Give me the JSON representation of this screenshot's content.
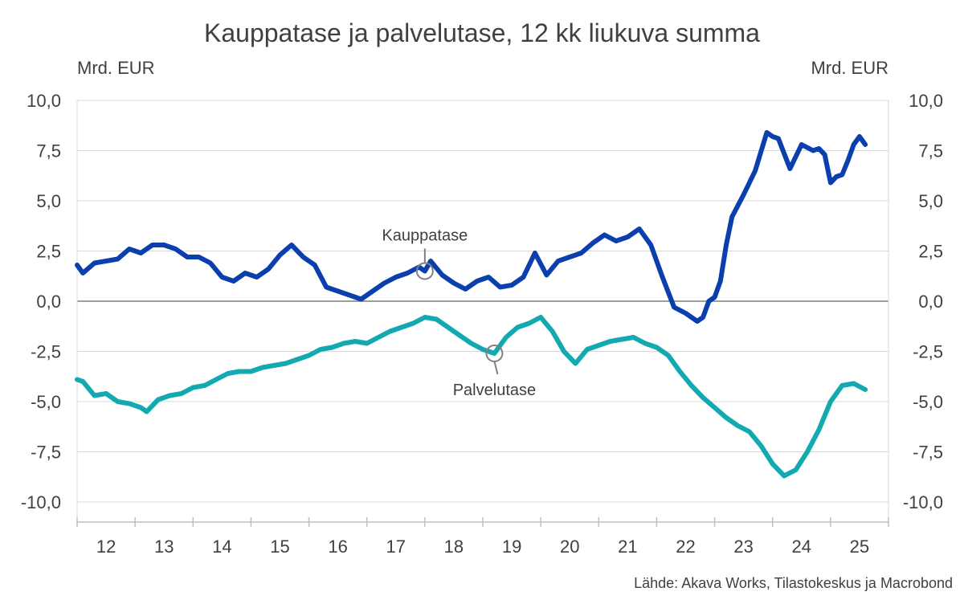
{
  "chart_data": {
    "type": "line",
    "title": "Kauppatase ja palvelutase, 12 kk liukuva summa",
    "ylabel_left": "Mrd. EUR",
    "ylabel_right": "Mrd. EUR",
    "ylim": [
      -10,
      10
    ],
    "yticks": [
      "10,0",
      "7,5",
      "5,0",
      "2,5",
      "0,0",
      "-2,5",
      "-5,0",
      "-7,5",
      "-10,0"
    ],
    "ytick_values": [
      10,
      7.5,
      5,
      2.5,
      0,
      -2.5,
      -5,
      -7.5,
      -10
    ],
    "xlim": [
      2012,
      2026
    ],
    "xticks": [
      "12",
      "13",
      "14",
      "15",
      "16",
      "17",
      "18",
      "19",
      "20",
      "21",
      "22",
      "23",
      "24",
      "25"
    ],
    "source": "Lähde: Akava Works, Tilastokeskus ja Macrobond",
    "colors": {
      "kauppatase": "#0a3fad",
      "palvelutase": "#12a9b0",
      "grid": "#d9d9d9",
      "axis": "#7f7f7f"
    },
    "series": [
      {
        "name": "Kauppatase",
        "annotation_x": 2018.0,
        "x": [
          2012.0,
          2012.1,
          2012.3,
          2012.5,
          2012.7,
          2012.9,
          2013.1,
          2013.3,
          2013.5,
          2013.7,
          2013.9,
          2014.1,
          2014.3,
          2014.5,
          2014.7,
          2014.9,
          2015.1,
          2015.3,
          2015.5,
          2015.7,
          2015.9,
          2016.1,
          2016.3,
          2016.5,
          2016.7,
          2016.9,
          2017.1,
          2017.3,
          2017.5,
          2017.7,
          2017.9,
          2018.0,
          2018.1,
          2018.3,
          2018.5,
          2018.7,
          2018.9,
          2019.1,
          2019.3,
          2019.5,
          2019.7,
          2019.9,
          2020.1,
          2020.3,
          2020.5,
          2020.7,
          2020.9,
          2021.1,
          2021.3,
          2021.5,
          2021.7,
          2021.9,
          2022.1,
          2022.3,
          2022.5,
          2022.7,
          2022.8,
          2022.9,
          2023.0,
          2023.1,
          2023.2,
          2023.3,
          2023.5,
          2023.7,
          2023.9,
          2024.0,
          2024.1,
          2024.3,
          2024.5,
          2024.7,
          2024.8,
          2024.9,
          2025.0,
          2025.1,
          2025.2,
          2025.3,
          2025.4,
          2025.5,
          2025.6
        ],
        "values": [
          1.8,
          1.4,
          1.9,
          2.0,
          2.1,
          2.6,
          2.4,
          2.8,
          2.8,
          2.6,
          2.2,
          2.2,
          1.9,
          1.2,
          1.0,
          1.4,
          1.2,
          1.6,
          2.3,
          2.8,
          2.2,
          1.8,
          0.7,
          0.5,
          0.3,
          0.1,
          0.5,
          0.9,
          1.2,
          1.4,
          1.7,
          1.5,
          2.0,
          1.3,
          0.9,
          0.6,
          1.0,
          1.2,
          0.7,
          0.8,
          1.2,
          2.4,
          1.3,
          2.0,
          2.2,
          2.4,
          2.9,
          3.3,
          3.0,
          3.2,
          3.6,
          2.8,
          1.2,
          -0.3,
          -0.6,
          -1.0,
          -0.8,
          0.0,
          0.2,
          1.0,
          2.8,
          4.2,
          5.3,
          6.5,
          8.4,
          8.2,
          8.1,
          6.6,
          7.8,
          7.5,
          7.6,
          7.3,
          5.9,
          6.2,
          6.3,
          7.0,
          7.8,
          8.2,
          7.8
        ]
      },
      {
        "name": "Palvelutase",
        "annotation_x": 2019.2,
        "x": [
          2012.0,
          2012.1,
          2012.3,
          2012.5,
          2012.7,
          2012.9,
          2013.1,
          2013.2,
          2013.4,
          2013.6,
          2013.8,
          2014.0,
          2014.2,
          2014.4,
          2014.6,
          2014.8,
          2015.0,
          2015.2,
          2015.4,
          2015.6,
          2015.8,
          2016.0,
          2016.2,
          2016.4,
          2016.6,
          2016.8,
          2017.0,
          2017.2,
          2017.4,
          2017.6,
          2017.8,
          2018.0,
          2018.2,
          2018.4,
          2018.6,
          2018.8,
          2019.0,
          2019.2,
          2019.4,
          2019.6,
          2019.8,
          2020.0,
          2020.2,
          2020.4,
          2020.6,
          2020.8,
          2021.0,
          2021.2,
          2021.4,
          2021.6,
          2021.8,
          2022.0,
          2022.2,
          2022.4,
          2022.6,
          2022.8,
          2023.0,
          2023.2,
          2023.4,
          2023.6,
          2023.8,
          2024.0,
          2024.2,
          2024.4,
          2024.6,
          2024.8,
          2025.0,
          2025.2,
          2025.4,
          2025.6
        ],
        "values": [
          -3.9,
          -4.0,
          -4.7,
          -4.6,
          -5.0,
          -5.1,
          -5.3,
          -5.5,
          -4.9,
          -4.7,
          -4.6,
          -4.3,
          -4.2,
          -3.9,
          -3.6,
          -3.5,
          -3.5,
          -3.3,
          -3.2,
          -3.1,
          -2.9,
          -2.7,
          -2.4,
          -2.3,
          -2.1,
          -2.0,
          -2.1,
          -1.8,
          -1.5,
          -1.3,
          -1.1,
          -0.8,
          -0.9,
          -1.3,
          -1.7,
          -2.1,
          -2.4,
          -2.6,
          -1.8,
          -1.3,
          -1.1,
          -0.8,
          -1.5,
          -2.5,
          -3.1,
          -2.4,
          -2.2,
          -2.0,
          -1.9,
          -1.8,
          -2.1,
          -2.3,
          -2.7,
          -3.5,
          -4.2,
          -4.8,
          -5.3,
          -5.8,
          -6.2,
          -6.5,
          -7.2,
          -8.1,
          -8.7,
          -8.4,
          -7.5,
          -6.4,
          -5.0,
          -4.2,
          -4.1,
          -4.4
        ]
      }
    ],
    "annotations": [
      "Kauppatase",
      "Palvelutase"
    ]
  }
}
